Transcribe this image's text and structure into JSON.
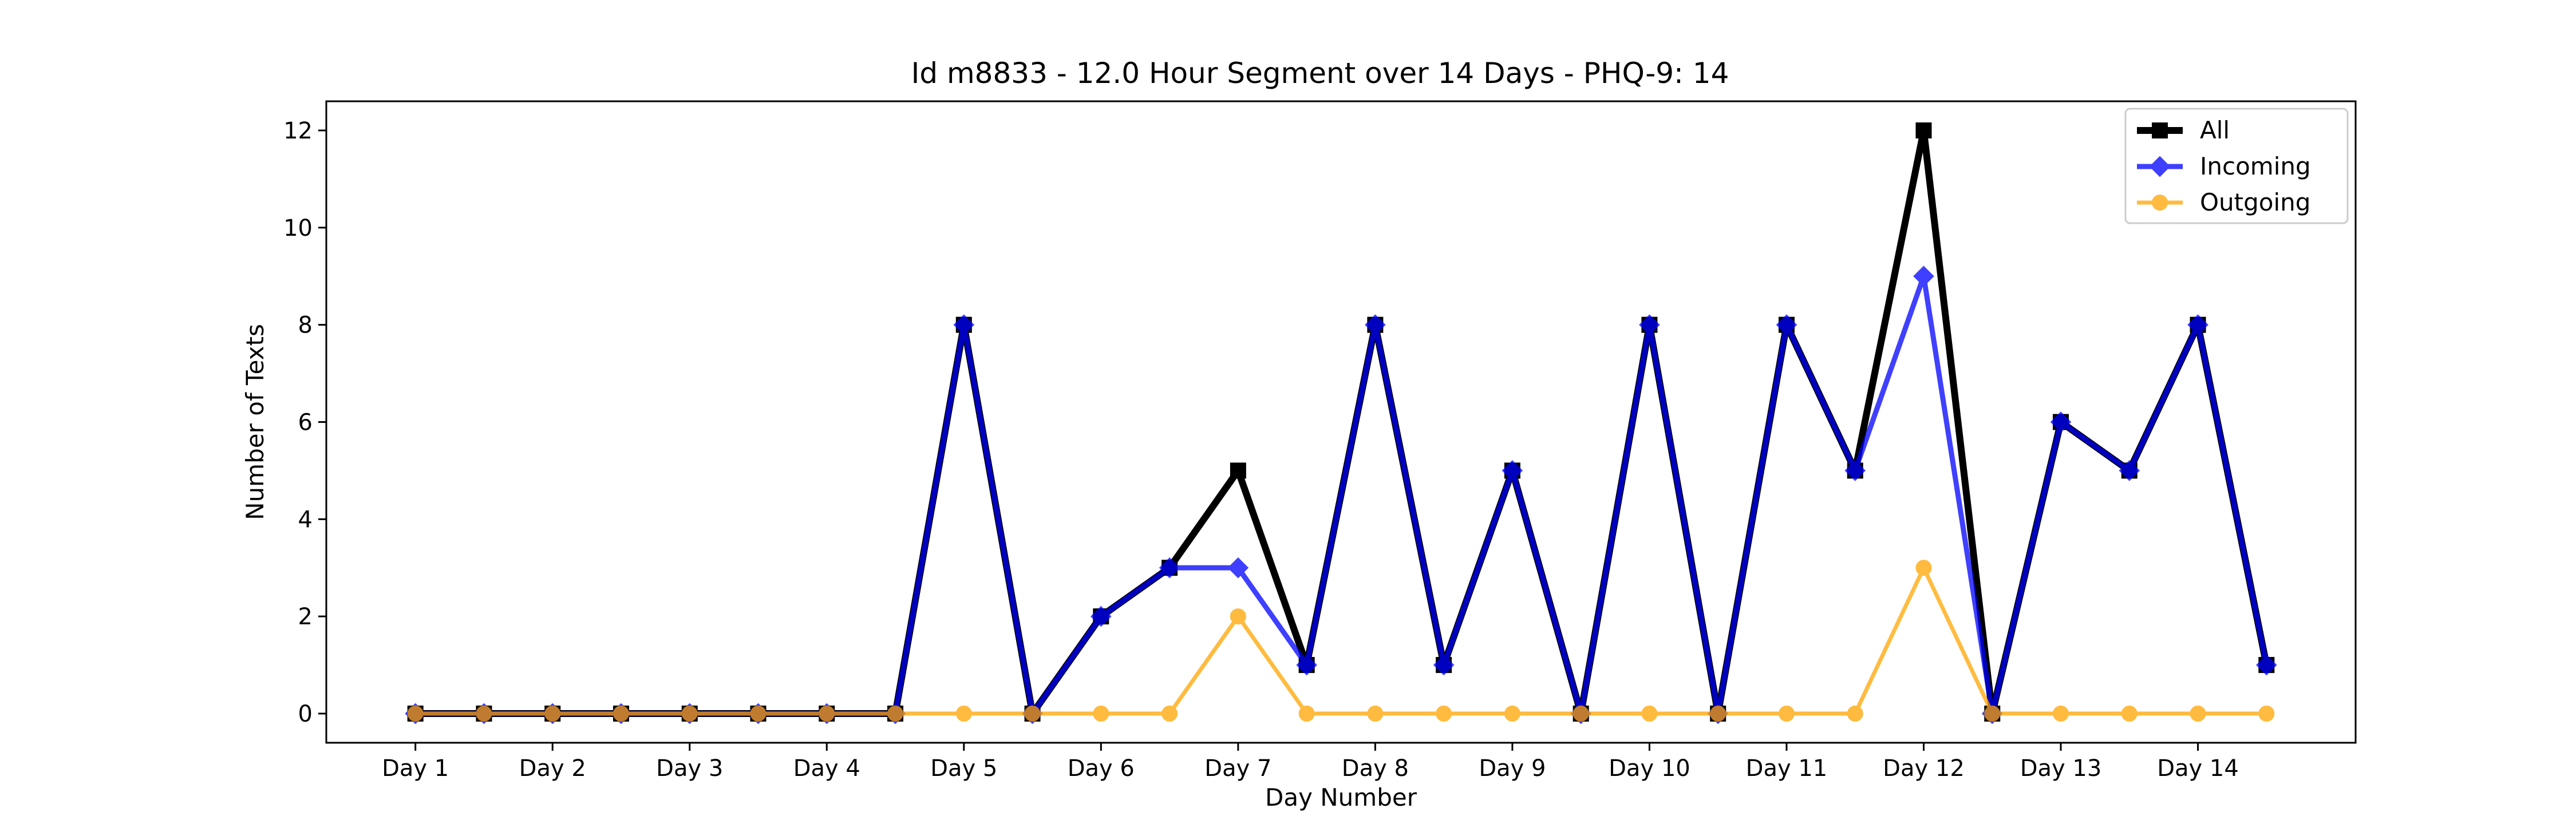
{
  "chart_data": {
    "type": "line",
    "title": "Id m8833 - 12.0 Hour Segment over 14 Days - PHQ-9: 14",
    "xlabel": "Day Number",
    "ylabel": "Number of Texts",
    "x_tick_labels": [
      "Day 1",
      "Day 2",
      "Day 3",
      "Day 4",
      "Day 5",
      "Day 6",
      "Day 7",
      "Day 8",
      "Day 9",
      "Day 10",
      "Day 11",
      "Day 12",
      "Day 13",
      "Day 14"
    ],
    "y_ticks": [
      0,
      2,
      4,
      6,
      8,
      10,
      12
    ],
    "x": [
      1,
      1.5,
      2,
      2.5,
      3,
      3.5,
      4,
      4.5,
      5,
      5.5,
      6,
      6.5,
      7,
      7.5,
      8,
      8.5,
      9,
      9.5,
      10,
      10.5,
      11,
      11.5,
      12,
      12.5,
      13,
      13.5,
      14,
      14.5
    ],
    "xlim": [
      0.35,
      15.15
    ],
    "ylim": [
      -0.6,
      12.6
    ],
    "grid": false,
    "legend_position": "top-right",
    "series": [
      {
        "name": "All",
        "color": "#000000",
        "marker": "square",
        "values": [
          0,
          0,
          0,
          0,
          0,
          0,
          0,
          0,
          8,
          0,
          2,
          3,
          5,
          1,
          8,
          1,
          5,
          0,
          8,
          0,
          8,
          5,
          12,
          0,
          6,
          5,
          8,
          1
        ]
      },
      {
        "name": "Incoming",
        "color": "#0000ff",
        "marker": "diamond",
        "values": [
          0,
          0,
          0,
          0,
          0,
          0,
          0,
          0,
          8,
          0,
          2,
          3,
          3,
          1,
          8,
          1,
          5,
          0,
          8,
          0,
          8,
          5,
          9,
          0,
          6,
          5,
          8,
          1
        ]
      },
      {
        "name": "Outgoing",
        "color": "#ffa500",
        "marker": "circle",
        "values": [
          0,
          0,
          0,
          0,
          0,
          0,
          0,
          0,
          0,
          0,
          0,
          0,
          2,
          0,
          0,
          0,
          0,
          0,
          0,
          0,
          0,
          0,
          3,
          0,
          0,
          0,
          0,
          0
        ]
      }
    ]
  }
}
